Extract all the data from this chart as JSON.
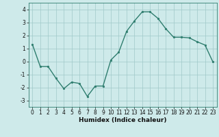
{
  "x": [
    0,
    1,
    2,
    3,
    4,
    5,
    6,
    7,
    8,
    9,
    10,
    11,
    12,
    13,
    14,
    15,
    16,
    17,
    18,
    19,
    20,
    21,
    22,
    23
  ],
  "y": [
    1.3,
    -0.4,
    -0.4,
    -1.3,
    -2.1,
    -1.6,
    -1.7,
    -2.7,
    -1.9,
    -1.9,
    0.1,
    0.7,
    2.3,
    3.1,
    3.8,
    3.8,
    3.3,
    2.5,
    1.85,
    1.85,
    1.8,
    1.5,
    1.25,
    -0.05
  ],
  "line_color": "#2e7d6e",
  "marker": "o",
  "markersize": 1.8,
  "linewidth": 1.0,
  "xlabel": "Humidex (Indice chaleur)",
  "xlim": [
    -0.5,
    23.5
  ],
  "ylim": [
    -3.5,
    4.5
  ],
  "yticks": [
    -3,
    -2,
    -1,
    0,
    1,
    2,
    3,
    4
  ],
  "xticks": [
    0,
    1,
    2,
    3,
    4,
    5,
    6,
    7,
    8,
    9,
    10,
    11,
    12,
    13,
    14,
    15,
    16,
    17,
    18,
    19,
    20,
    21,
    22,
    23
  ],
  "bg_color": "#ceeaea",
  "grid_color": "#a0c8c8",
  "tick_fontsize": 5.5,
  "xlabel_fontsize": 6.5
}
